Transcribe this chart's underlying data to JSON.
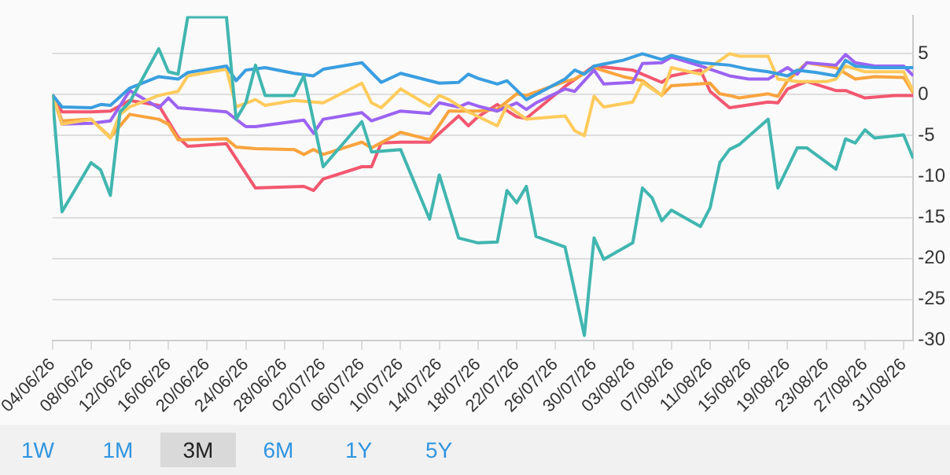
{
  "chart_data": {
    "type": "line",
    "xlim": [
      "--06-04",
      "--09-01"
    ],
    "xticks": [
      {
        "value": "--06-04",
        "label": "04/06/26"
      },
      {
        "value": "--06-08",
        "label": "08/06/26"
      },
      {
        "value": "--06-12",
        "label": "12/06/26"
      },
      {
        "value": "--06-16",
        "label": "16/06/26"
      },
      {
        "value": "--06-20",
        "label": "20/06/26"
      },
      {
        "value": "--06-24",
        "label": "24/06/26"
      },
      {
        "value": "--06-28",
        "label": "28/06/26"
      },
      {
        "value": "--07-02",
        "label": "02/07/26"
      },
      {
        "value": "--07-06",
        "label": "06/07/26"
      },
      {
        "value": "--07-10",
        "label": "10/07/26"
      },
      {
        "value": "--07-14",
        "label": "14/07/26"
      },
      {
        "value": "--07-18",
        "label": "18/07/26"
      },
      {
        "value": "--07-22",
        "label": "22/07/26"
      },
      {
        "value": "--07-26",
        "label": "26/07/26"
      },
      {
        "value": "--07-30",
        "label": "30/07/26"
      },
      {
        "value": "--08-03",
        "label": "03/08/26"
      },
      {
        "value": "--08-07",
        "label": "07/08/26"
      },
      {
        "value": "--08-11",
        "label": "11/08/26"
      },
      {
        "value": "--08-15",
        "label": "15/08/26"
      },
      {
        "value": "--08-19",
        "label": "19/08/26"
      },
      {
        "value": "--08-23",
        "label": "23/08/26"
      },
      {
        "value": "--08-27",
        "label": "27/08/26"
      },
      {
        "value": "--08-31",
        "label": "31/08/26"
      }
    ],
    "ylim": [
      -30,
      9.6
    ],
    "yticks": [
      -30,
      -25,
      -20,
      -15,
      -10,
      -5,
      0,
      5
    ],
    "grid": "y",
    "marker": "none",
    "legend": false,
    "annotations": [
      "1W",
      "1M",
      "3M",
      "6M",
      "1Y",
      "5Y"
    ],
    "series": [
      {
        "color": "#41b6b0",
        "x": [
          "--06-04",
          "--06-05",
          "--06-08",
          "--06-09",
          "--06-10",
          "--06-11",
          "--06-12",
          "--06-15",
          "--06-16",
          "--06-17",
          "--06-18",
          "--06-22",
          "--06-23",
          "--06-24",
          "--06-25",
          "--06-26",
          "--06-29",
          "--06-30",
          "--07-02",
          "--07-06",
          "--07-07",
          "--07-10",
          "--07-13",
          "--07-14",
          "--07-16",
          "--07-18",
          "--07-20",
          "--07-21",
          "--07-22",
          "--07-23",
          "--07-24",
          "--07-27",
          "--07-29",
          "--07-30",
          "--07-31",
          "--08-03",
          "--08-04",
          "--08-05",
          "--08-06",
          "--08-07",
          "--08-10",
          "--08-11",
          "--08-12",
          "--08-13",
          "--08-14",
          "--08-17",
          "--08-18",
          "--08-20",
          "--08-21",
          "--08-24",
          "--08-25",
          "--08-26",
          "--08-27",
          "--08-28",
          "--08-31",
          "--09-01"
        ],
        "values": [
          0,
          -14.3,
          -8.3,
          -9.2,
          -12.3,
          -2.1,
          -0.9,
          5.6,
          2.8,
          2.5,
          9.5,
          9.5,
          -3.0,
          -1.0,
          3.6,
          -0.1,
          -0.1,
          2.3,
          -8.8,
          -3.3,
          -7.0,
          -6.7,
          -15.2,
          -9.8,
          -17.5,
          -18.1,
          -18.0,
          -11.7,
          -13.2,
          -11.2,
          -17.3,
          -18.6,
          -29.4,
          -17.5,
          -20.1,
          -18.1,
          -11.4,
          -12.6,
          -15.4,
          -14.1,
          -16.1,
          -13.8,
          -8.3,
          -6.7,
          -6.1,
          -3.0,
          -11.4,
          -6.5,
          -6.5,
          -9.1,
          -5.4,
          -5.9,
          -4.3,
          -5.3,
          -4.9,
          -7.8
        ]
      },
      {
        "color": "#3a9ee0",
        "x": [
          "--06-04",
          "--06-05",
          "--06-08",
          "--06-09",
          "--06-10",
          "--06-12",
          "--06-15",
          "--06-17",
          "--06-18",
          "--06-22",
          "--06-23",
          "--06-24",
          "--06-26",
          "--06-29",
          "--07-01",
          "--07-02",
          "--07-06",
          "--07-08",
          "--07-10",
          "--07-14",
          "--07-16",
          "--07-17",
          "--07-18",
          "--07-20",
          "--07-21",
          "--07-23",
          "--07-27",
          "--07-28",
          "--07-29",
          "--07-30",
          "--08-02",
          "--08-04",
          "--08-06",
          "--08-07",
          "--08-10",
          "--08-13",
          "--08-15",
          "--08-17",
          "--08-19",
          "--08-20",
          "--08-22",
          "--08-24",
          "--08-25",
          "--08-26",
          "--08-28",
          "--09-01"
        ],
        "values": [
          0,
          -1.5,
          -1.6,
          -1.2,
          -1.3,
          0.8,
          2.2,
          1.9,
          2.7,
          3.5,
          1.7,
          3.0,
          3.3,
          2.6,
          2.3,
          3.1,
          3.9,
          1.5,
          2.6,
          1.4,
          1.5,
          2.5,
          2.0,
          1.3,
          1.7,
          -0.6,
          1.9,
          3.0,
          2.5,
          3.5,
          4.2,
          5.0,
          4.3,
          4.8,
          3.9,
          3.6,
          3.1,
          2.8,
          2.3,
          3.0,
          2.7,
          2.3,
          4.2,
          3.5,
          3.3,
          3.3
        ]
      },
      {
        "color": "#ffcb5c",
        "x": [
          "--06-04",
          "--06-05",
          "--06-08",
          "--06-10",
          "--06-11",
          "--06-12",
          "--06-15",
          "--06-17",
          "--06-18",
          "--06-22",
          "--06-23",
          "--06-25",
          "--06-26",
          "--06-29",
          "--07-02",
          "--07-06",
          "--07-07",
          "--07-08",
          "--07-10",
          "--07-13",
          "--07-14",
          "--07-15",
          "--07-17",
          "--07-20",
          "--07-21",
          "--07-23",
          "--07-27",
          "--07-28",
          "--07-29",
          "--07-30",
          "--07-31",
          "--08-03",
          "--08-04",
          "--08-06",
          "--08-07",
          "--08-10",
          "--08-13",
          "--08-14",
          "--08-17",
          "--08-18",
          "--08-20",
          "--08-23",
          "--08-24",
          "--08-25",
          "--08-27",
          "--08-31",
          "--09-01"
        ],
        "values": [
          0,
          -3.6,
          -3.0,
          -5.3,
          -2.4,
          -1.5,
          -0.1,
          0.4,
          2.3,
          3.1,
          -1.5,
          -0.6,
          -1.3,
          -0.7,
          -1.0,
          1.4,
          -1.0,
          -1.6,
          0.7,
          -1.4,
          -0.1,
          -0.6,
          -2.1,
          -3.8,
          -1.3,
          -3.0,
          -2.6,
          -4.4,
          -5.0,
          -0.2,
          -1.5,
          -0.9,
          1.5,
          -0.1,
          3.3,
          2.5,
          5.0,
          4.7,
          4.7,
          1.9,
          1.6,
          1.6,
          1.9,
          3.5,
          2.8,
          2.8,
          0.4
        ]
      },
      {
        "color": "#9b63f2",
        "x": [
          "--06-04",
          "--06-05",
          "--06-08",
          "--06-10",
          "--06-12",
          "--06-15",
          "--06-16",
          "--06-17",
          "--06-22",
          "--06-24",
          "--06-25",
          "--06-30",
          "--07-01",
          "--07-02",
          "--07-06",
          "--07-07",
          "--07-10",
          "--07-13",
          "--07-14",
          "--07-16",
          "--07-17",
          "--07-18",
          "--07-20",
          "--07-22",
          "--07-23",
          "--07-24",
          "--07-27",
          "--07-28",
          "--07-30",
          "--07-31",
          "--08-03",
          "--08-04",
          "--08-06",
          "--08-07",
          "--08-10",
          "--08-13",
          "--08-15",
          "--08-17",
          "--08-19",
          "--08-20",
          "--08-21",
          "--08-24",
          "--08-25",
          "--08-26",
          "--08-28",
          "--08-31",
          "--09-01"
        ],
        "values": [
          0,
          -3.6,
          -3.5,
          -3.2,
          0.5,
          -1.6,
          -0.4,
          -1.6,
          -2.1,
          -3.9,
          -3.9,
          -3.1,
          -4.7,
          -3.0,
          -2.2,
          -3.2,
          -2.0,
          -2.3,
          -1.0,
          -1.5,
          -1.0,
          -1.4,
          -2.0,
          -1.0,
          -1.8,
          -1.0,
          0.7,
          0.4,
          3.0,
          1.3,
          1.5,
          3.8,
          3.9,
          4.6,
          3.5,
          2.3,
          1.9,
          1.9,
          3.3,
          2.5,
          3.9,
          3.6,
          4.9,
          3.9,
          3.5,
          3.5,
          2.3
        ]
      },
      {
        "color": "#f9a43e",
        "x": [
          "--06-04",
          "--06-05",
          "--06-08",
          "--06-10",
          "--06-12",
          "--06-15",
          "--06-16",
          "--06-17",
          "--06-22",
          "--06-23",
          "--06-25",
          "--06-29",
          "--06-30",
          "--07-01",
          "--07-02",
          "--07-06",
          "--07-07",
          "--07-10",
          "--07-13",
          "--07-15",
          "--07-18",
          "--07-20",
          "--07-22",
          "--07-23",
          "--07-27",
          "--07-28",
          "--07-30",
          "--08-02",
          "--08-04",
          "--08-06",
          "--08-07",
          "--08-11",
          "--08-12",
          "--08-13",
          "--08-14",
          "--08-17",
          "--08-18",
          "--08-19",
          "--08-21",
          "--08-24",
          "--08-26",
          "--08-28",
          "--08-31",
          "--09-01"
        ],
        "values": [
          0,
          -3.2,
          -3.0,
          -5.2,
          -2.4,
          -3.0,
          -3.6,
          -5.5,
          -5.4,
          -6.4,
          -6.6,
          -6.7,
          -7.3,
          -6.7,
          -7.3,
          -5.8,
          -6.5,
          -4.6,
          -5.5,
          -2.0,
          -2.0,
          -1.8,
          0.1,
          -0.1,
          1.6,
          1.9,
          3.3,
          2.2,
          1.7,
          -0.1,
          1.1,
          1.4,
          0.1,
          -0.1,
          -0.4,
          0.1,
          -0.2,
          1.7,
          3.9,
          3.3,
          1.9,
          2.2,
          2.1,
          0.2
        ]
      },
      {
        "color": "#f2576f",
        "x": [
          "--06-04",
          "--06-05",
          "--06-08",
          "--06-10",
          "--06-12",
          "--06-15",
          "--06-17",
          "--06-18",
          "--06-22",
          "--06-25",
          "--06-30",
          "--07-01",
          "--07-02",
          "--07-06",
          "--07-07",
          "--07-08",
          "--07-10",
          "--07-13",
          "--07-16",
          "--07-17",
          "--07-18",
          "--07-20",
          "--07-22",
          "--07-23",
          "--07-27",
          "--07-30",
          "--08-03",
          "--08-04",
          "--08-06",
          "--08-07",
          "--08-10",
          "--08-11",
          "--08-13",
          "--08-17",
          "--08-18",
          "--08-19",
          "--08-21",
          "--08-24",
          "--08-25",
          "--08-27",
          "--08-30",
          "--09-01"
        ],
        "values": [
          0,
          -2.1,
          -2.1,
          -2.0,
          -0.7,
          -1.3,
          -5.2,
          -6.3,
          -6.0,
          -11.4,
          -11.2,
          -11.7,
          -10.3,
          -8.8,
          -8.8,
          -5.9,
          -5.8,
          -5.8,
          -2.6,
          -3.8,
          -2.7,
          -1.2,
          -2.7,
          -2.9,
          1.0,
          3.5,
          3.0,
          2.5,
          1.5,
          2.3,
          3.0,
          0.4,
          -1.6,
          -0.9,
          -1.0,
          0.7,
          1.6,
          0.5,
          0.5,
          -0.4,
          -0.1,
          -0.1
        ]
      }
    ]
  }
}
